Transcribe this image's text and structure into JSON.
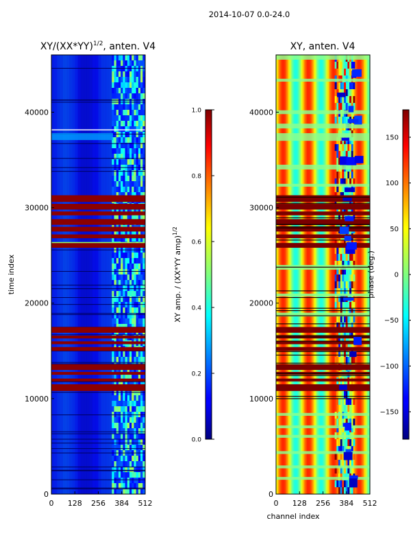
{
  "figure": {
    "suptitle": "2014-10-07 0.0-24.0"
  },
  "chart_data": [
    {
      "type": "heatmap",
      "title_prefix": "XY/(XX*YY)",
      "title_exponent": "1/2",
      "title_suffix": ", anten. V4",
      "xlabel": "",
      "ylabel": "time index",
      "x_ticks": [
        0,
        128,
        256,
        384,
        512
      ],
      "y_ticks": [
        0,
        10000,
        20000,
        30000,
        40000
      ],
      "xlim": [
        0,
        512
      ],
      "ylim": [
        0,
        46000
      ],
      "colorscale": "jet",
      "colorbar": {
        "label_prefix": "XY amp. / (XX*YY amp)",
        "label_exponent": "1/2",
        "ticks": [
          "0.0",
          "0.2",
          "0.4",
          "0.6",
          "0.8",
          "1.0"
        ],
        "range": [
          0.0,
          1.0
        ]
      },
      "high_bands": [
        [
          10800,
          11500
        ],
        [
          11800,
          12100
        ],
        [
          12500,
          12800
        ],
        [
          13000,
          13600
        ],
        [
          15000,
          15400
        ],
        [
          15700,
          16000
        ],
        [
          16300,
          16600
        ],
        [
          16900,
          17500
        ],
        [
          25800,
          26300
        ],
        [
          26800,
          27200
        ],
        [
          27500,
          28000
        ],
        [
          28200,
          28800
        ],
        [
          29200,
          29600
        ],
        [
          29800,
          30400
        ],
        [
          30600,
          31300
        ]
      ]
    },
    {
      "type": "heatmap",
      "title": "XY, anten. V4",
      "xlabel": "channel index",
      "ylabel": "",
      "x_ticks": [
        0,
        128,
        256,
        384,
        512
      ],
      "y_ticks": [
        0,
        10000,
        20000,
        30000,
        40000
      ],
      "xlim": [
        0,
        512
      ],
      "ylim": [
        0,
        46000
      ],
      "colorscale": "jet",
      "colorbar": {
        "label": "phase (deg.)",
        "ticks": [
          "150",
          "100",
          "50",
          "0",
          "−50",
          "−100",
          "−150"
        ],
        "range": [
          -180,
          180
        ]
      }
    }
  ]
}
